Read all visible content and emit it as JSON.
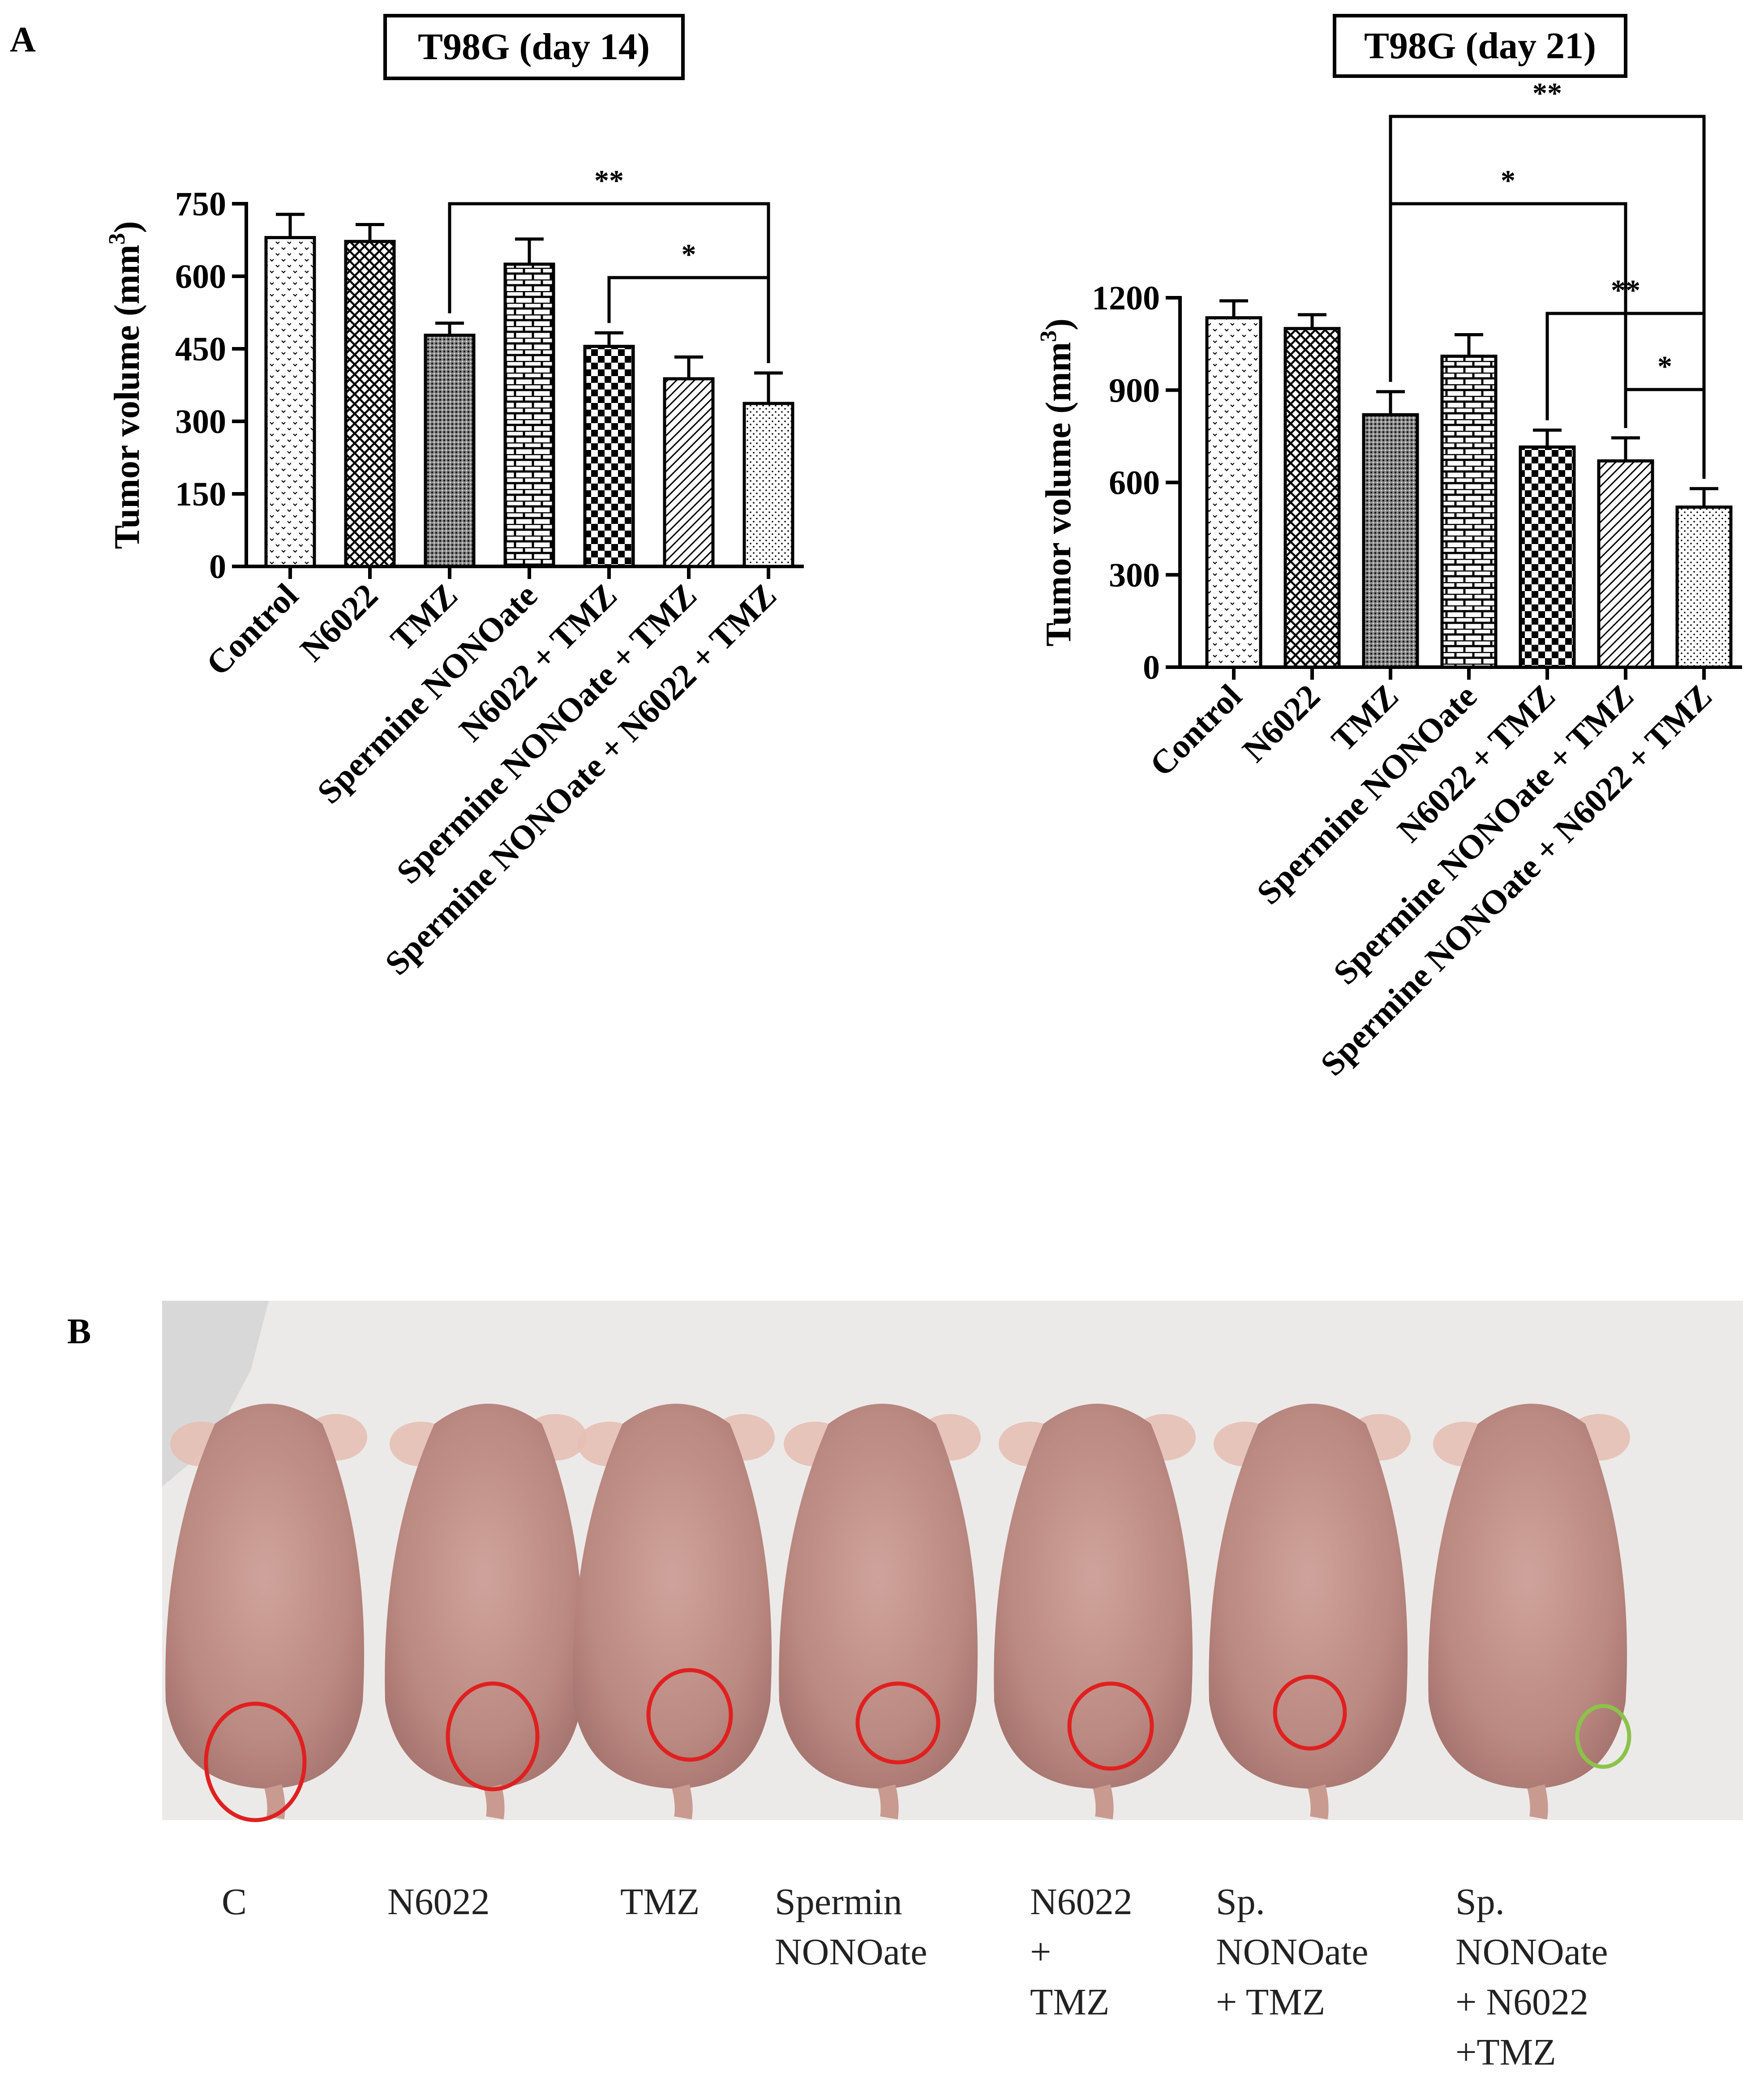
{
  "panel_a_label": "A",
  "panel_b_label": "B",
  "chart_data": [
    {
      "type": "bar",
      "title": "T98G (day 14)",
      "xlabel": "",
      "ylabel": "Tumor volume (mm3)",
      "ylabel_main": "Tumor volume (mm",
      "ylabel_sup": "3",
      "ylabel_close": ")",
      "categories": [
        "Control",
        "N6022",
        "TMZ",
        "Spermine NONOate",
        "N6022 + TMZ",
        "Spermine NONOate + TMZ",
        "Spermine NONOate + N6022 + TMZ"
      ],
      "values": [
        680,
        672,
        478,
        625,
        455,
        388,
        337
      ],
      "errors": [
        48,
        35,
        25,
        52,
        28,
        45,
        63
      ],
      "ylim": [
        0,
        750
      ],
      "yticks": [
        0,
        150,
        300,
        450,
        600,
        750
      ],
      "significance": [
        {
          "from": 2,
          "to": 6,
          "label": "**"
        },
        {
          "from": 4,
          "to": 6,
          "label": "*"
        }
      ]
    },
    {
      "type": "bar",
      "title": "T98G (day 21)",
      "xlabel": "",
      "ylabel": "Tumor volume (mm3)",
      "ylabel_main": "Tumor volume (mm",
      "ylabel_sup": "3",
      "ylabel_close": ")",
      "categories": [
        "Control",
        "N6022",
        "TMZ",
        "Spermine NONOate",
        "N6022 + TMZ",
        "Spermine NONOate + TMZ",
        "Spermine NONOate + N6022 + TMZ"
      ],
      "values": [
        1135,
        1100,
        820,
        1010,
        715,
        670,
        520
      ],
      "errors": [
        55,
        45,
        75,
        70,
        55,
        75,
        60
      ],
      "ylim": [
        0,
        1200
      ],
      "yticks": [
        0,
        300,
        600,
        900,
        1200
      ],
      "significance": [
        {
          "from": 2,
          "to": 6,
          "label": "**"
        },
        {
          "from": 2,
          "to": 5,
          "label": "*"
        },
        {
          "from": 4,
          "to": 6,
          "label": "**"
        },
        {
          "from": 5,
          "to": 6,
          "label": "*"
        }
      ]
    }
  ],
  "photo_labels": [
    [
      "C"
    ],
    [
      "N6022"
    ],
    [
      "TMZ"
    ],
    [
      "Spermin",
      "NONOate"
    ],
    [
      "N6022",
      "+",
      "TMZ"
    ],
    [
      "Sp.",
      "NONOate",
      "+ TMZ"
    ],
    [
      "Sp.",
      "NONOate",
      "+ N6022",
      "+TMZ"
    ]
  ],
  "colors": {
    "axis": "#000000",
    "bar_fill": "#ffffff",
    "tumor_circle": "#e02020",
    "no_tumor_circle": "#8bc34a",
    "mouse_skin": "#c9958c",
    "photo_background": "#eceae8"
  }
}
